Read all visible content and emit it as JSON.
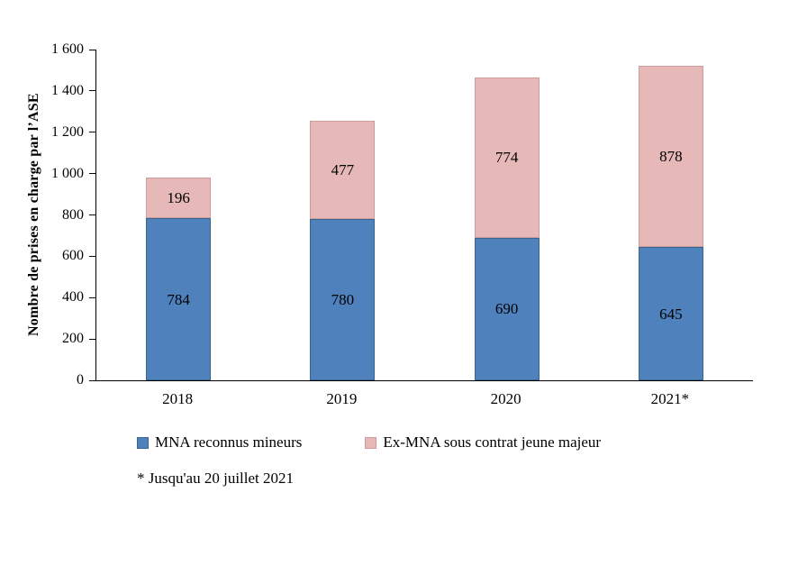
{
  "chart_data": {
    "type": "bar",
    "subtype": "stacked",
    "title": "",
    "categories": [
      "2018",
      "2019",
      "2020",
      "2021*"
    ],
    "series": [
      {
        "name": "MNA reconnus mineurs",
        "color": "#4F81BD",
        "border_color": "#39658F",
        "values": [
          784,
          780,
          690,
          645
        ]
      },
      {
        "name": "Ex-MNA sous contrat jeune majeur",
        "color": "#E6B9B8",
        "border_color": "#CD9C9B",
        "values": [
          196,
          477,
          774,
          878
        ]
      }
    ],
    "xlabel": "",
    "ylabel": "Nombre de prises en charge par l’ASE",
    "ylim": [
      0,
      1600
    ],
    "yticks": [
      {
        "value": 0,
        "label": "0"
      },
      {
        "value": 200,
        "label": "200"
      },
      {
        "value": 400,
        "label": "400"
      },
      {
        "value": 600,
        "label": "600"
      },
      {
        "value": 800,
        "label": "800"
      },
      {
        "value": 1000,
        "label": "1 000"
      },
      {
        "value": 1200,
        "label": "1 200"
      },
      {
        "value": 1400,
        "label": "1 400"
      },
      {
        "value": 1600,
        "label": "1 600"
      }
    ],
    "grid": false,
    "legend_position": "bottom",
    "footnote": "* Jusqu'au 20 juillet 2021"
  }
}
